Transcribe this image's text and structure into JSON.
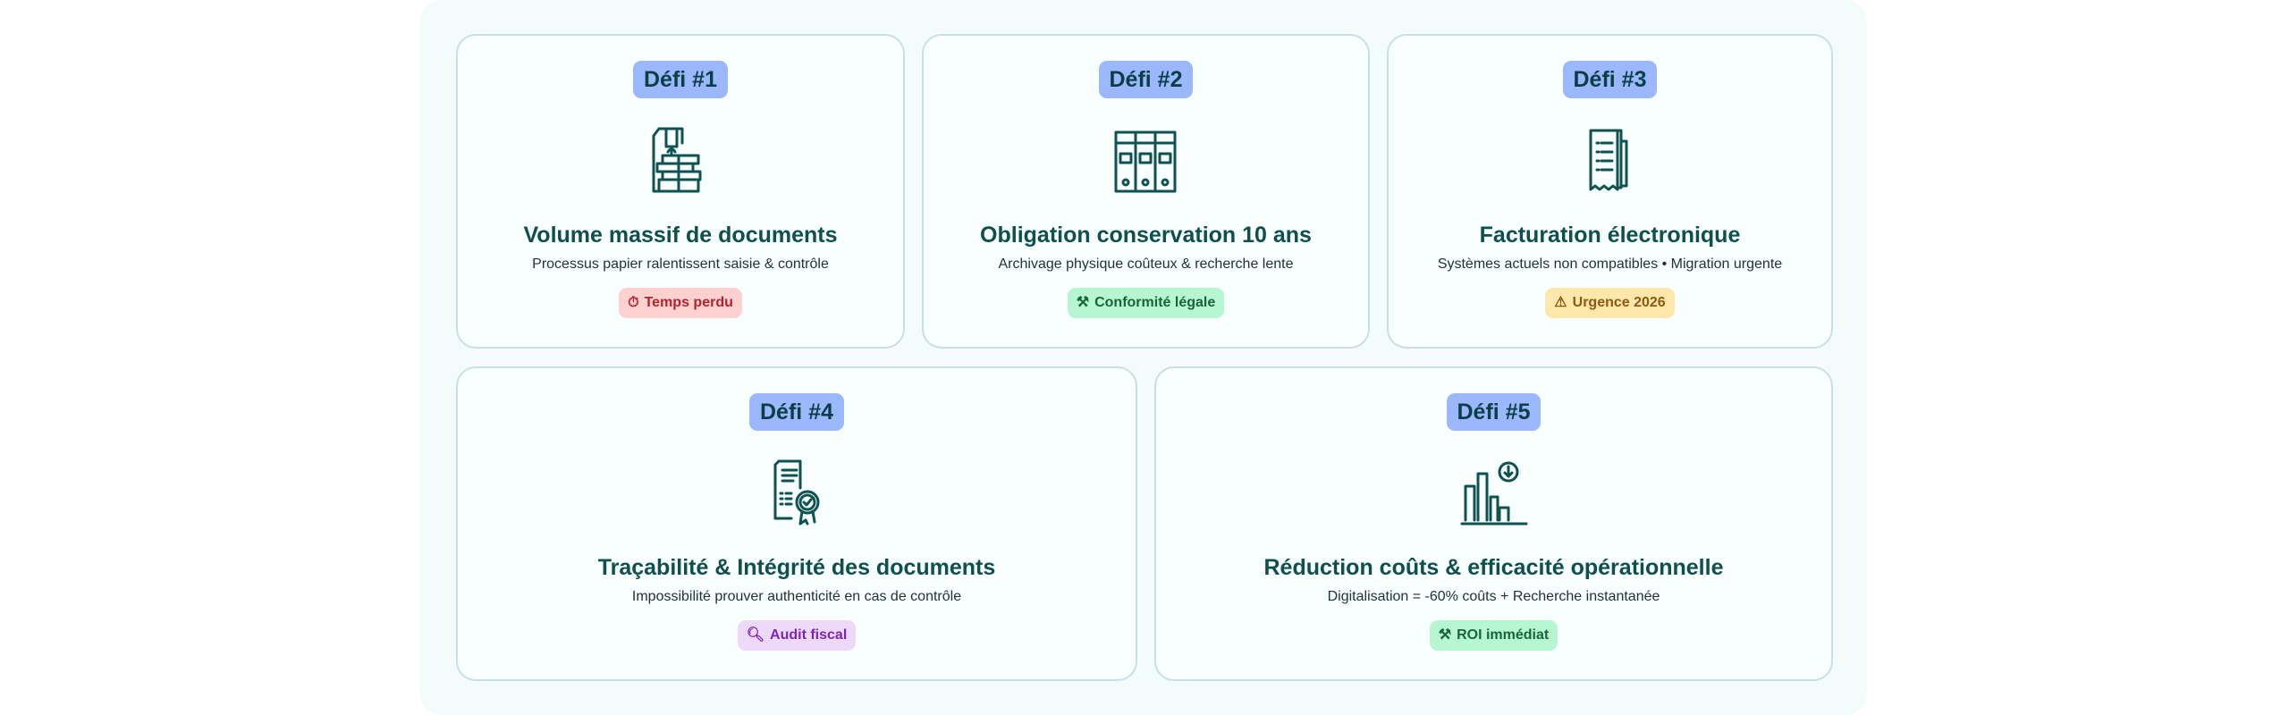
{
  "cards": [
    {
      "badge": "Défi #1",
      "icon": "document-stack-icon",
      "title": "Volume massif de documents",
      "subtitle": "Processus papier ralentissent saisie & contrôle",
      "tag": {
        "icon": "stopwatch-icon",
        "label": "Temps perdu",
        "color": "#b4232a",
        "bg": "#ffd1d1"
      }
    },
    {
      "badge": "Défi #2",
      "icon": "binders-icon",
      "title": "Obligation conservation 10 ans",
      "subtitle": "Archivage physique coûteux & recherche lente",
      "tag": {
        "icon": "gavel-icon",
        "label": "Conformité légale",
        "color": "#17653a",
        "bg": "#b6f7d2"
      }
    },
    {
      "badge": "Défi #3",
      "icon": "receipt-icon",
      "title": "Facturation électronique",
      "subtitle": "Systèmes actuels non compatibles • Migration urgente",
      "tag": {
        "icon": "warning-icon",
        "label": "Urgence 2026",
        "color": "#8f5a10",
        "bg": "#fde7aa"
      }
    },
    {
      "badge": "Défi #4",
      "icon": "certificate-icon",
      "title": "Traçabilité & Intégrité des documents",
      "subtitle": "Impossibilité prouver authenticité en cas de contrôle",
      "tag": {
        "icon": "search-icon",
        "label": "Audit fiscal",
        "color": "#7a26b8",
        "bg": "#efd9fb"
      }
    },
    {
      "badge": "Défi #5",
      "icon": "cost-reduction-chart-icon",
      "title": "Réduction coûts & efficacité opérationnelle",
      "subtitle": "Digitalisation = -60% coûts + Recherche instantanée",
      "tag": {
        "icon": "gavel-icon",
        "label": "ROI immédiat",
        "color": "#17653a",
        "bg": "#b6f7d2"
      }
    }
  ]
}
